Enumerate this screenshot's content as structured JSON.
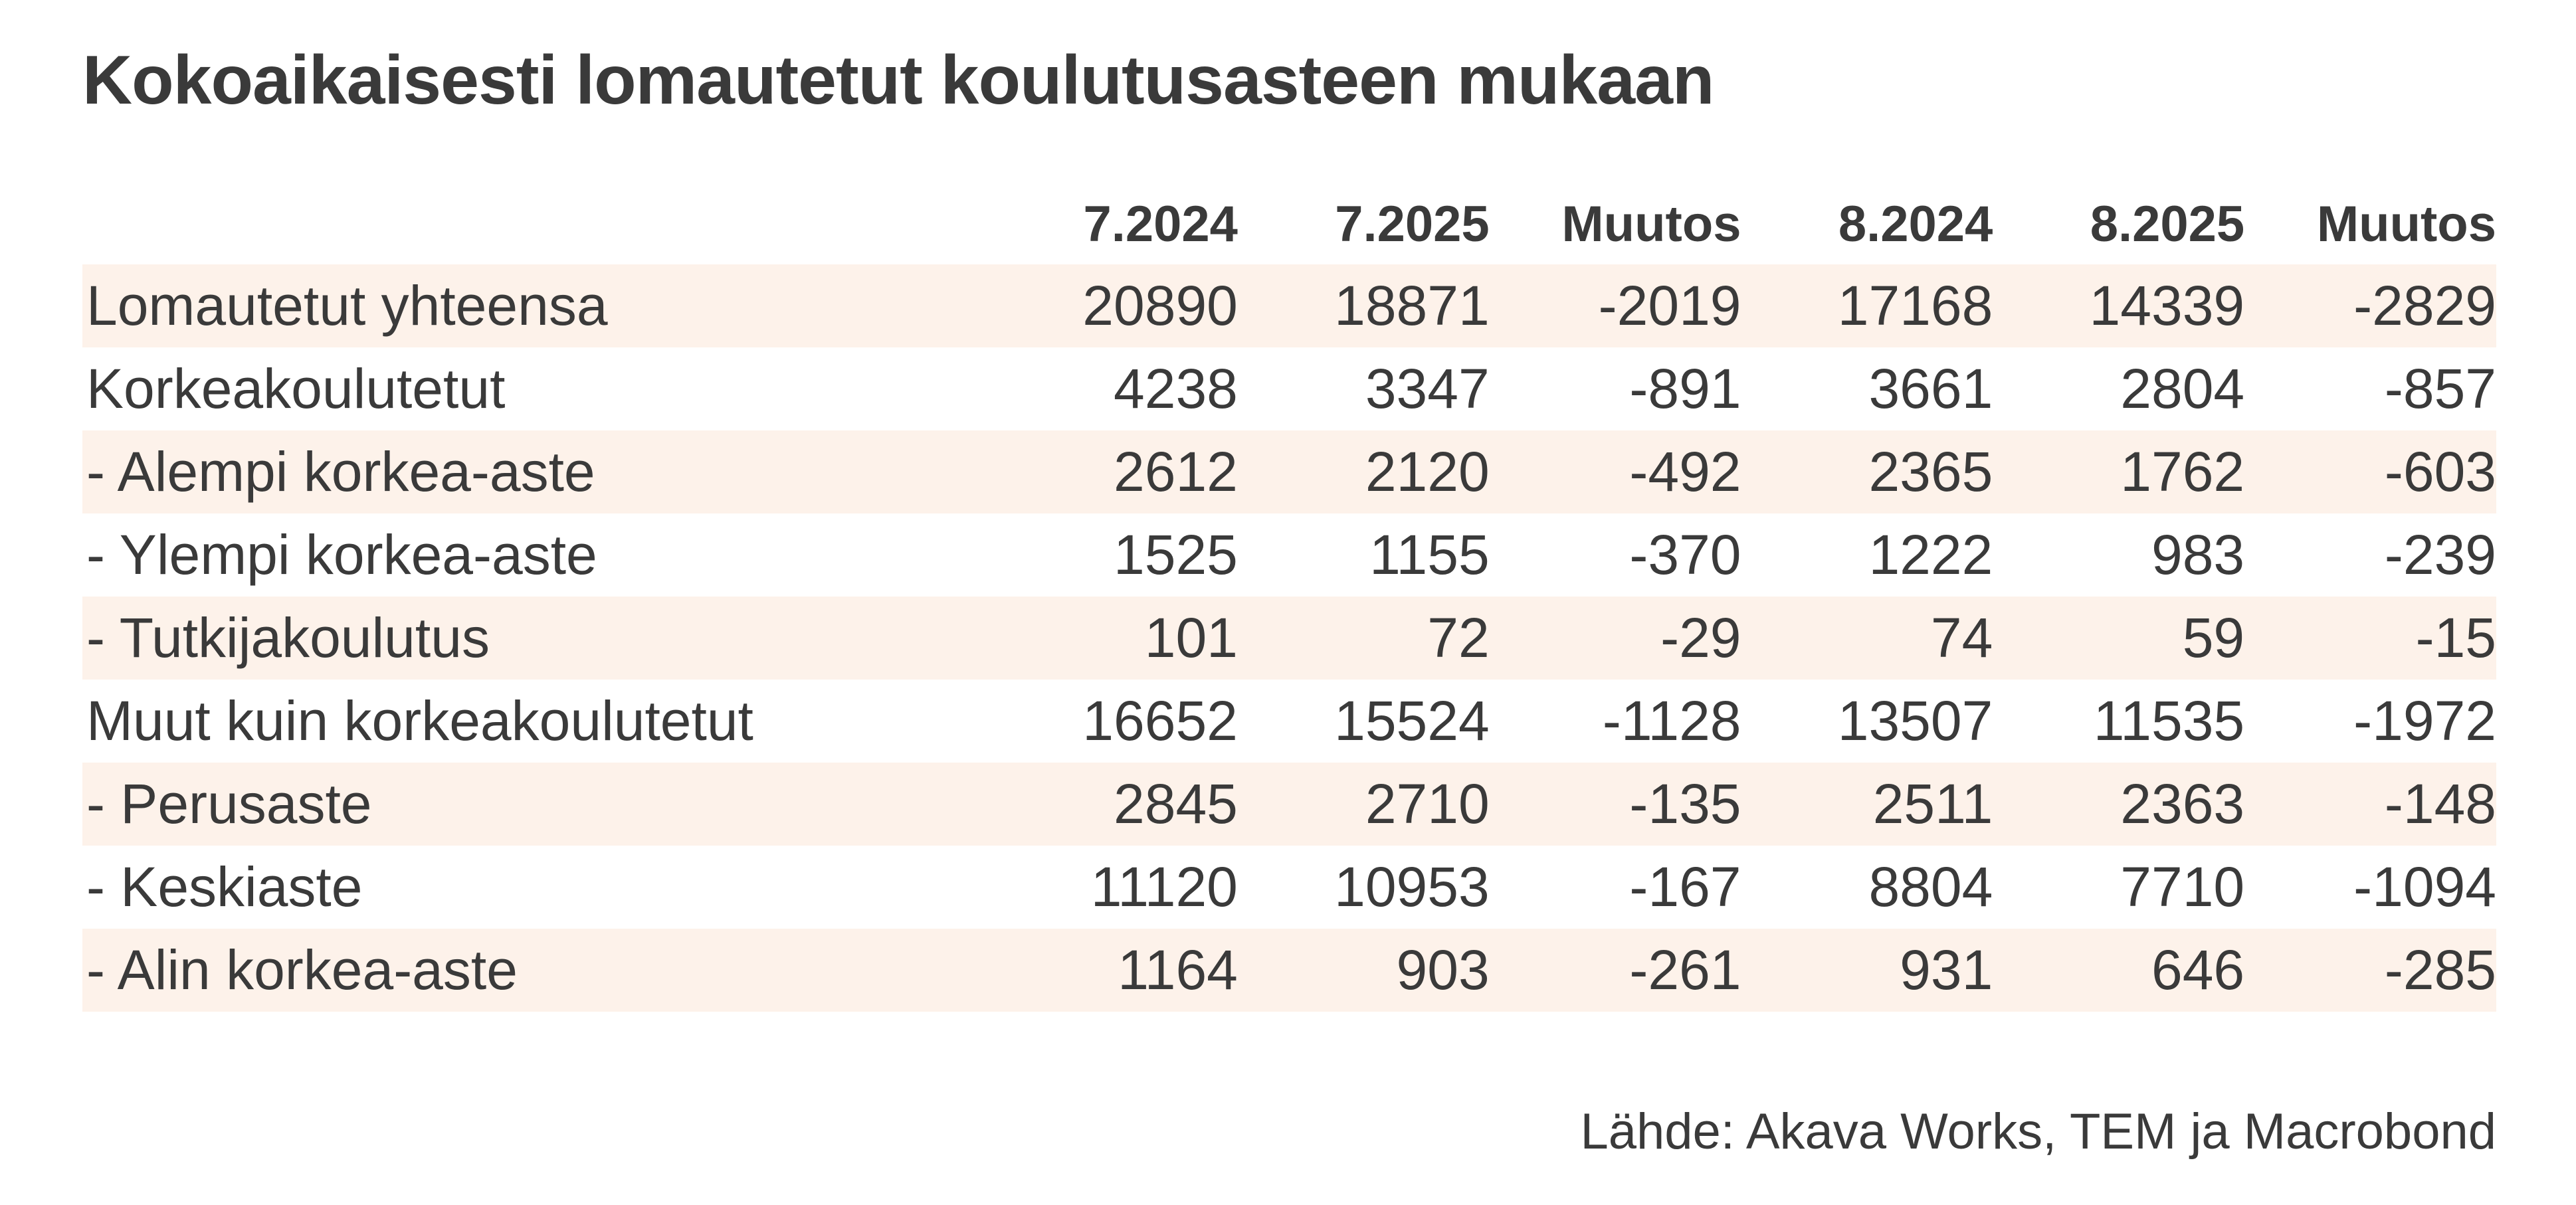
{
  "title": "Kokoaikaisesti lomautetut koulutusasteen mukaan",
  "source": "Lähde: Akava Works, TEM ja Macrobond",
  "colors": {
    "stripe": "#fdf2ea",
    "text": "#3a3a3a",
    "background": "#ffffff"
  },
  "chart_data": {
    "type": "table",
    "title": "Kokoaikaisesti lomautetut koulutusasteen mukaan",
    "columns": [
      "",
      "7.2024",
      "7.2025",
      "Muutos",
      "8.2024",
      "8.2025",
      "Muutos"
    ],
    "rows": [
      [
        "Lomautetut yhteensa",
        "20890",
        "18871",
        "-2019",
        "17168",
        "14339",
        "-2829"
      ],
      [
        "Korkeakoulutetut",
        "4238",
        "3347",
        "-891",
        "3661",
        "2804",
        "-857"
      ],
      [
        "- Alempi korkea-aste",
        "2612",
        "2120",
        "-492",
        "2365",
        "1762",
        "-603"
      ],
      [
        "- Ylempi korkea-aste",
        "1525",
        "1155",
        "-370",
        "1222",
        "983",
        "-239"
      ],
      [
        "- Tutkijakoulutus",
        "101",
        "72",
        "-29",
        "74",
        "59",
        "-15"
      ],
      [
        "Muut kuin korkeakoulutetut",
        "16652",
        "15524",
        "-1128",
        "13507",
        "11535",
        "-1972"
      ],
      [
        "- Perusaste",
        "2845",
        "2710",
        "-135",
        "2511",
        "2363",
        "-148"
      ],
      [
        "- Keskiaste",
        "11120",
        "10953",
        "-167",
        "8804",
        "7710",
        "-1094"
      ],
      [
        "- Alin korkea-aste",
        "1164",
        "903",
        "-261",
        "931",
        "646",
        "-285"
      ]
    ]
  }
}
